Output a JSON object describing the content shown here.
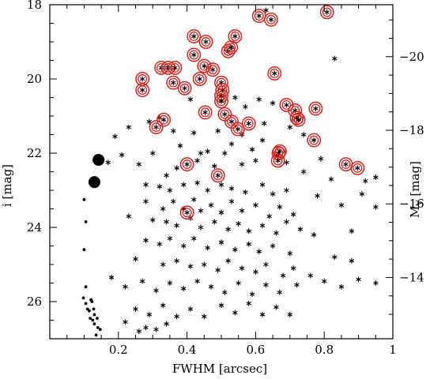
{
  "chart_data": {
    "type": "scatter",
    "title": "",
    "xlabel": "FWHM [arcsec]",
    "ylabel_left": "i [mag]",
    "ylabel_right_main": "M",
    "ylabel_right_sub": "V",
    "ylabel_right_unit": "[mag]",
    "xlim": [
      0,
      1
    ],
    "ylim": [
      27,
      18
    ],
    "xticks": [
      0.2,
      0.4,
      0.6,
      0.8,
      1
    ],
    "xtick_labels": [
      "0.2",
      "0.4",
      "0.6",
      "0.8",
      "1"
    ],
    "yticks": [
      18,
      20,
      22,
      24,
      26
    ],
    "ytick_labels": [
      "18",
      "20",
      "22",
      "24",
      "26"
    ],
    "right_ticks": [
      -20,
      -18,
      -16,
      -14
    ],
    "right_tick_labels": [
      "−20",
      "−18",
      "−16",
      "−14"
    ],
    "right_axis_i_at_Mv_-20": 19.4,
    "right_axis_i_at_Mv_-14": 25.35,
    "big_dots": [
      [
        0.142,
        22.18
      ],
      [
        0.13,
        22.78
      ]
    ],
    "small_dots": [
      [
        0.1,
        23.25
      ],
      [
        0.105,
        23.85
      ],
      [
        0.1,
        24.6
      ],
      [
        0.105,
        25.6
      ],
      [
        0.098,
        25.9
      ],
      [
        0.105,
        26.05
      ],
      [
        0.11,
        26.2
      ],
      [
        0.12,
        25.95
      ],
      [
        0.115,
        26.25
      ],
      [
        0.13,
        26.35
      ],
      [
        0.118,
        26.45
      ],
      [
        0.125,
        26.5
      ],
      [
        0.13,
        26.6
      ],
      [
        0.14,
        26.7
      ],
      [
        0.128,
        26.2
      ],
      [
        0.138,
        26.45
      ],
      [
        0.123,
        26.0
      ],
      [
        0.147,
        26.75
      ],
      [
        0.135,
        26.9
      ]
    ],
    "circled_points": [
      [
        0.61,
        18.3
      ],
      [
        0.645,
        18.4
      ],
      [
        0.808,
        18.2
      ],
      [
        0.42,
        18.85
      ],
      [
        0.455,
        19.0
      ],
      [
        0.52,
        19.25
      ],
      [
        0.528,
        19.15
      ],
      [
        0.54,
        18.85
      ],
      [
        0.42,
        19.35
      ],
      [
        0.325,
        19.7
      ],
      [
        0.345,
        19.7
      ],
      [
        0.365,
        19.7
      ],
      [
        0.45,
        19.65
      ],
      [
        0.475,
        19.75
      ],
      [
        0.437,
        20.0
      ],
      [
        0.655,
        19.85
      ],
      [
        0.27,
        20.0
      ],
      [
        0.27,
        20.3
      ],
      [
        0.36,
        20.1
      ],
      [
        0.393,
        20.25
      ],
      [
        0.5,
        20.1
      ],
      [
        0.503,
        20.3
      ],
      [
        0.5,
        20.45
      ],
      [
        0.5,
        20.6
      ],
      [
        0.453,
        20.9
      ],
      [
        0.51,
        20.95
      ],
      [
        0.69,
        20.7
      ],
      [
        0.715,
        20.85
      ],
      [
        0.332,
        21.1
      ],
      [
        0.53,
        21.15
      ],
      [
        0.58,
        21.2
      ],
      [
        0.31,
        21.3
      ],
      [
        0.548,
        21.35
      ],
      [
        0.72,
        21.05
      ],
      [
        0.725,
        21.1
      ],
      [
        0.775,
        20.8
      ],
      [
        0.77,
        21.65
      ],
      [
        0.67,
        21.95
      ],
      [
        0.667,
        22.0
      ],
      [
        0.665,
        22.2
      ],
      [
        0.4,
        22.3
      ],
      [
        0.863,
        22.3
      ],
      [
        0.897,
        22.4
      ],
      [
        0.49,
        22.6
      ],
      [
        0.4,
        23.6
      ]
    ],
    "stars": [
      [
        0.19,
        21.55
      ],
      [
        0.23,
        21.3
      ],
      [
        0.29,
        21.15
      ],
      [
        0.32,
        21.05
      ],
      [
        0.3,
        22.0
      ],
      [
        0.36,
        21.4
      ],
      [
        0.38,
        21.8
      ],
      [
        0.42,
        21.45
      ],
      [
        0.44,
        22.0
      ],
      [
        0.46,
        21.95
      ],
      [
        0.49,
        21.4
      ],
      [
        0.53,
        21.75
      ],
      [
        0.56,
        21.5
      ],
      [
        0.59,
        21.9
      ],
      [
        0.62,
        21.65
      ],
      [
        0.66,
        22.05
      ],
      [
        0.7,
        21.3
      ],
      [
        0.74,
        21.5
      ],
      [
        0.41,
        20.55
      ],
      [
        0.54,
        20.5
      ],
      [
        0.57,
        20.75
      ],
      [
        0.61,
        20.55
      ],
      [
        0.65,
        20.65
      ],
      [
        0.625,
        21.2
      ],
      [
        0.17,
        22.25
      ],
      [
        0.21,
        22.05
      ],
      [
        0.26,
        22.3
      ],
      [
        0.34,
        22.6
      ],
      [
        0.37,
        22.4
      ],
      [
        0.43,
        22.2
      ],
      [
        0.48,
        22.35
      ],
      [
        0.51,
        22.0
      ],
      [
        0.56,
        22.3
      ],
      [
        0.6,
        22.2
      ],
      [
        0.69,
        22.25
      ],
      [
        0.74,
        22.5
      ],
      [
        0.79,
        22.15
      ],
      [
        0.82,
        22.7
      ],
      [
        0.92,
        22.75
      ],
      [
        0.95,
        22.65
      ],
      [
        0.28,
        22.85
      ],
      [
        0.32,
        22.9
      ],
      [
        0.35,
        23.0
      ],
      [
        0.39,
        22.85
      ],
      [
        0.43,
        22.8
      ],
      [
        0.46,
        23.0
      ],
      [
        0.5,
        22.85
      ],
      [
        0.53,
        22.95
      ],
      [
        0.57,
        23.05
      ],
      [
        0.62,
        22.85
      ],
      [
        0.65,
        23.1
      ],
      [
        0.69,
        23.0
      ],
      [
        0.78,
        23.15
      ],
      [
        0.91,
        23.1
      ],
      [
        0.28,
        23.3
      ],
      [
        0.33,
        23.5
      ],
      [
        0.36,
        23.3
      ],
      [
        0.39,
        23.5
      ],
      [
        0.42,
        23.25
      ],
      [
        0.44,
        23.55
      ],
      [
        0.47,
        23.4
      ],
      [
        0.5,
        23.6
      ],
      [
        0.53,
        23.3
      ],
      [
        0.56,
        23.55
      ],
      [
        0.6,
        23.4
      ],
      [
        0.64,
        23.7
      ],
      [
        0.67,
        23.45
      ],
      [
        0.71,
        23.65
      ],
      [
        0.85,
        23.4
      ],
      [
        0.95,
        23.45
      ],
      [
        0.23,
        23.7
      ],
      [
        0.3,
        23.8
      ],
      [
        0.34,
        23.85
      ],
      [
        0.37,
        23.95
      ],
      [
        0.41,
        23.75
      ],
      [
        0.44,
        24.0
      ],
      [
        0.48,
        23.85
      ],
      [
        0.52,
        24.05
      ],
      [
        0.55,
        23.9
      ],
      [
        0.58,
        24.1
      ],
      [
        0.62,
        23.95
      ],
      [
        0.66,
        24.15
      ],
      [
        0.69,
        23.85
      ],
      [
        0.73,
        24.05
      ],
      [
        0.77,
        24.2
      ],
      [
        0.88,
        24.1
      ],
      [
        0.28,
        24.35
      ],
      [
        0.32,
        24.45
      ],
      [
        0.35,
        24.3
      ],
      [
        0.39,
        24.5
      ],
      [
        0.42,
        24.3
      ],
      [
        0.46,
        24.55
      ],
      [
        0.5,
        24.4
      ],
      [
        0.54,
        24.6
      ],
      [
        0.58,
        24.45
      ],
      [
        0.61,
        24.65
      ],
      [
        0.65,
        24.5
      ],
      [
        0.7,
        24.7
      ],
      [
        0.83,
        24.8
      ],
      [
        0.88,
        24.9
      ],
      [
        0.25,
        24.85
      ],
      [
        0.33,
        25.0
      ],
      [
        0.37,
        24.9
      ],
      [
        0.41,
        25.05
      ],
      [
        0.45,
        25.0
      ],
      [
        0.49,
        25.15
      ],
      [
        0.52,
        24.9
      ],
      [
        0.56,
        25.1
      ],
      [
        0.6,
        25.2
      ],
      [
        0.63,
        25.0
      ],
      [
        0.68,
        25.3
      ],
      [
        0.71,
        25.1
      ],
      [
        0.76,
        25.3
      ],
      [
        0.8,
        25.45
      ],
      [
        0.85,
        25.6
      ],
      [
        0.9,
        25.4
      ],
      [
        0.95,
        25.5
      ],
      [
        0.18,
        25.35
      ],
      [
        0.22,
        25.6
      ],
      [
        0.27,
        25.45
      ],
      [
        0.31,
        25.7
      ],
      [
        0.35,
        25.5
      ],
      [
        0.39,
        25.65
      ],
      [
        0.43,
        25.45
      ],
      [
        0.47,
        25.6
      ],
      [
        0.51,
        25.75
      ],
      [
        0.55,
        25.5
      ],
      [
        0.59,
        25.8
      ],
      [
        0.63,
        25.55
      ],
      [
        0.67,
        25.75
      ],
      [
        0.72,
        25.55
      ],
      [
        0.25,
        26.2
      ],
      [
        0.29,
        26.35
      ],
      [
        0.33,
        26.1
      ],
      [
        0.37,
        26.4
      ],
      [
        0.41,
        26.2
      ],
      [
        0.45,
        26.4
      ],
      [
        0.5,
        26.1
      ],
      [
        0.54,
        26.3
      ],
      [
        0.58,
        26.05
      ],
      [
        0.62,
        26.35
      ],
      [
        0.66,
        26.15
      ],
      [
        0.7,
        26.35
      ],
      [
        0.22,
        26.55
      ],
      [
        0.28,
        26.7
      ],
      [
        0.34,
        26.6
      ],
      [
        0.26,
        26.8
      ],
      [
        0.31,
        26.75
      ],
      [
        0.63,
        18.15
      ],
      [
        0.83,
        19.45
      ]
    ]
  }
}
